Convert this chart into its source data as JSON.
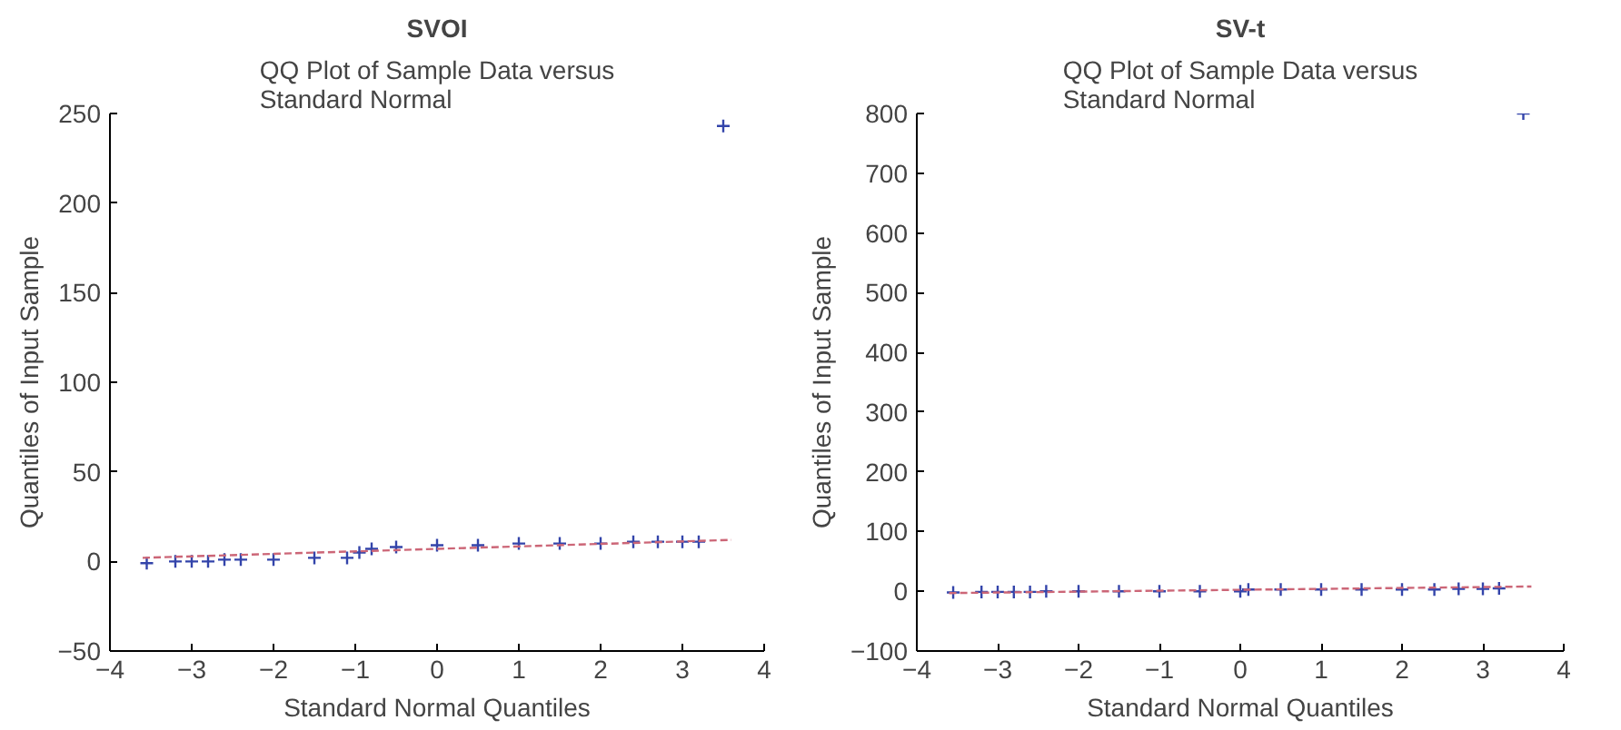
{
  "chart_data": [
    {
      "type": "scatter",
      "title": "SVOI",
      "subtitle": "QQ Plot of Sample Data versus\nStandard Normal",
      "xlabel": "Standard Normal Quantiles",
      "ylabel": "Quantiles of Input Sample",
      "xlim": [
        -4,
        4
      ],
      "ylim": [
        -50,
        250
      ],
      "xticks": [
        -4,
        -3,
        -2,
        -1,
        0,
        1,
        2,
        3,
        4
      ],
      "yticks": [
        -50,
        0,
        50,
        100,
        150,
        200,
        250
      ],
      "grid": false,
      "series": [
        {
          "type": "scatter",
          "marker": "cross",
          "color": "#3344aa",
          "x": [
            -3.55,
            -3.2,
            -3.0,
            -2.8,
            -2.6,
            -2.4,
            -2.0,
            -1.5,
            -1.1,
            -0.95,
            -0.8,
            -0.5,
            0,
            0.5,
            1,
            1.5,
            2,
            2.4,
            2.7,
            3.0,
            3.2,
            3.5
          ],
          "values": [
            -1,
            0,
            0,
            0,
            1,
            1,
            1,
            2,
            2,
            5,
            7,
            8,
            9,
            9,
            10,
            10,
            10,
            11,
            11,
            11,
            11,
            243
          ]
        },
        {
          "type": "line",
          "color": "#cc6677",
          "line_style": "dashed",
          "x": [
            -3.6,
            3.6
          ],
          "values": [
            2,
            12
          ]
        }
      ]
    },
    {
      "type": "scatter",
      "title": "SV-t",
      "subtitle": "QQ Plot of Sample Data versus\nStandard Normal",
      "xlabel": "Standard Normal Quantiles",
      "ylabel": "Quantiles of Input Sample",
      "xlim": [
        -4,
        4
      ],
      "ylim": [
        -100,
        800
      ],
      "xticks": [
        -4,
        -3,
        -2,
        -1,
        0,
        1,
        2,
        3,
        4
      ],
      "yticks": [
        -100,
        0,
        100,
        200,
        300,
        400,
        500,
        600,
        700,
        800
      ],
      "grid": false,
      "series": [
        {
          "type": "scatter",
          "marker": "cross",
          "color": "#3344aa",
          "x": [
            -3.55,
            -3.2,
            -3.0,
            -2.8,
            -2.6,
            -2.4,
            -2.0,
            -1.5,
            -1.0,
            -0.5,
            0,
            0.1,
            0.5,
            1,
            1.5,
            2,
            2.4,
            2.7,
            3.0,
            3.2,
            3.5
          ],
          "values": [
            -2,
            -1,
            -1,
            -1,
            -1,
            0,
            0,
            0,
            0,
            0,
            0,
            3,
            3,
            3,
            3,
            3,
            3,
            4,
            4,
            5,
            800
          ]
        },
        {
          "type": "line",
          "color": "#cc6677",
          "line_style": "dashed",
          "x": [
            -3.6,
            3.6
          ],
          "values": [
            -3,
            8
          ]
        }
      ]
    }
  ]
}
